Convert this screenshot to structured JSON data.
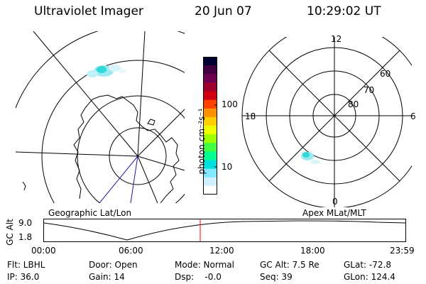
{
  "header": {
    "instrument": "Ultraviolet Imager",
    "date": "20 Jun 07",
    "time": "10:29:02 UT"
  },
  "left_panel": {
    "caption": "Geographic Lat/Lon"
  },
  "right_panel": {
    "caption": "Apex MLat/MLT",
    "lat_labels": [
      "60",
      "70",
      "80"
    ],
    "mlt_labels": [
      "12",
      "18",
      "6",
      "0"
    ]
  },
  "colorbar": {
    "unit_label": "photon cm⁻²s⁻¹",
    "tick_labels": [
      "100",
      "10"
    ],
    "colors_top_to_bottom": [
      "#000030",
      "#400040",
      "#700050",
      "#a00030",
      "#d00010",
      "#ff4000",
      "#ff9000",
      "#ffd000",
      "#f0ff00",
      "#a0ff00",
      "#40ff40",
      "#00ff90",
      "#00e0e0",
      "#80e8ff",
      "#d0f0ff",
      "#ffffff"
    ]
  },
  "altitude_plot": {
    "axis_label": "GC Alt",
    "y_labels": [
      "9.0",
      "1.8"
    ],
    "x_labels": [
      "00:00",
      "06:00",
      "12:00",
      "18:00",
      "23:59"
    ],
    "marker_color": "#ff0000"
  },
  "footer": {
    "row1": [
      "Flt: LBHL",
      "Door: Open",
      "Mode: Normal",
      "GC Alt: 7.5 Re",
      "GLat: -72.8"
    ],
    "row2": [
      "IP: 36.0",
      "Gain: 14",
      "Dsp:    -0.0",
      "Seq: 39",
      "GLon: 124.4"
    ]
  }
}
